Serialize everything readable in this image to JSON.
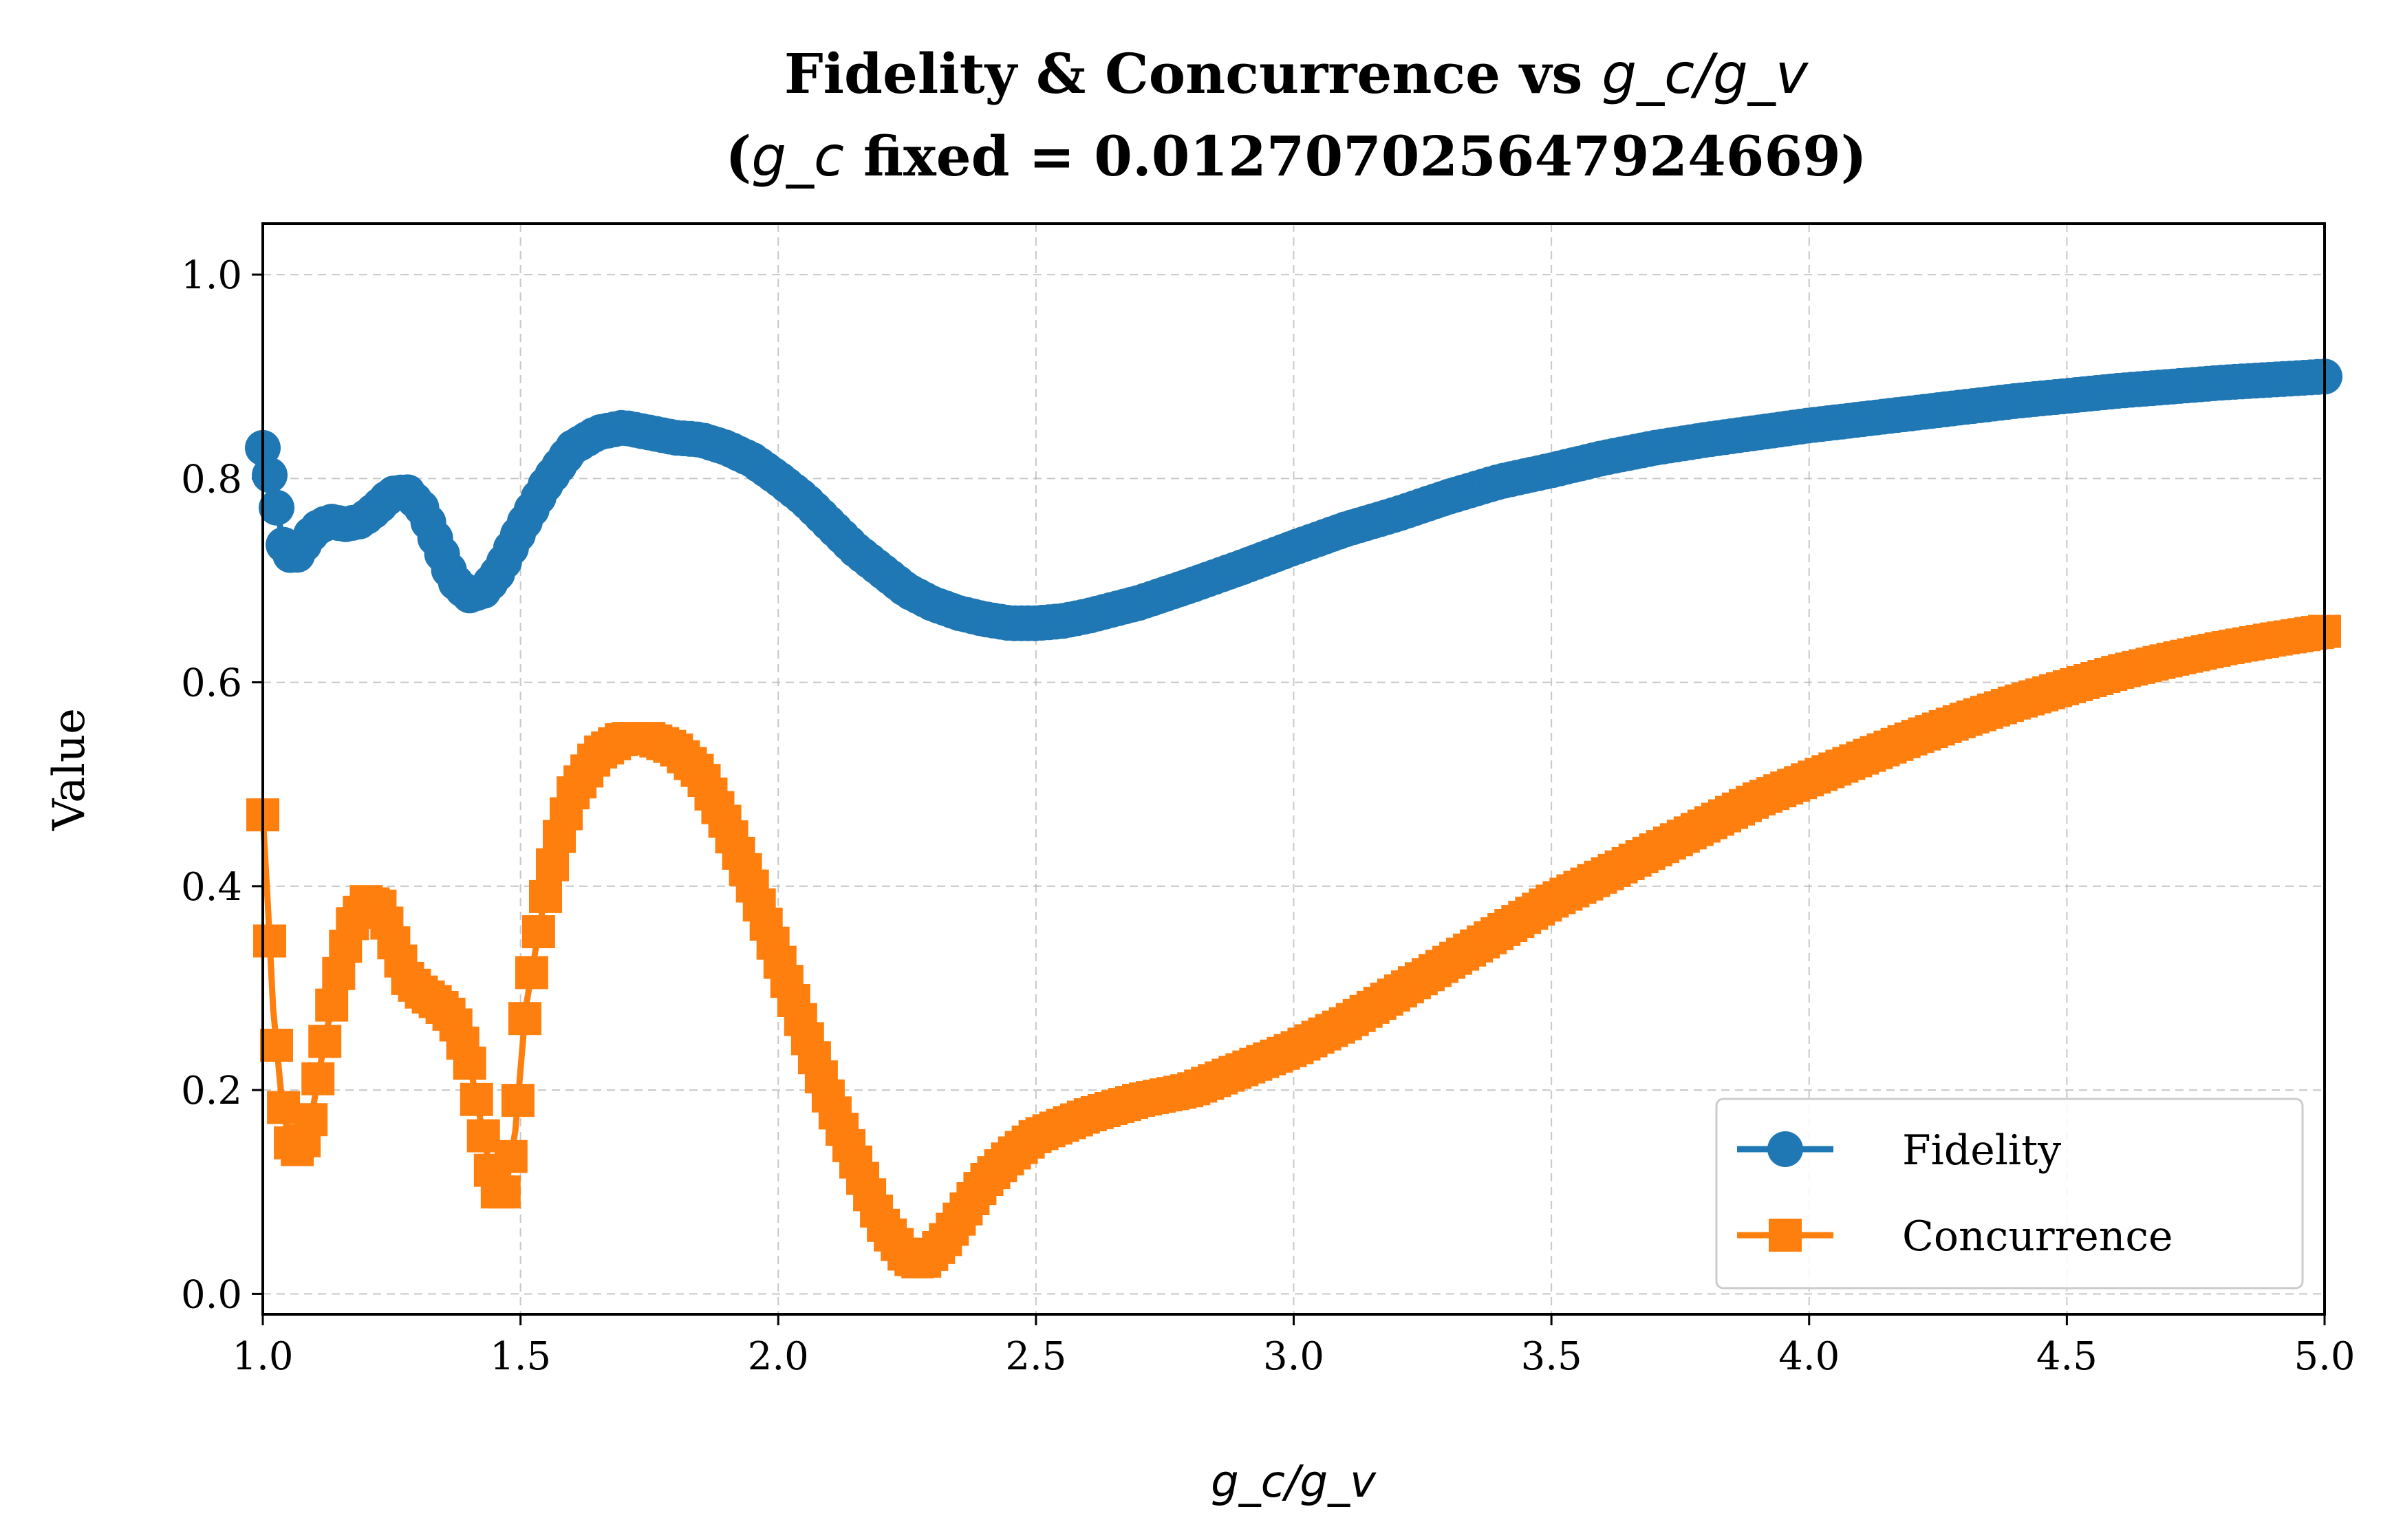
{
  "chart_data": {
    "type": "line",
    "title_line1_prefix": "Fidelity & Concurrence vs ",
    "title_line1_math": "g_c/g_v",
    "title_line2_open": "(",
    "title_line2_math": "g_c",
    "title_line2_rest": " fixed = 0.012707025647924669)",
    "xlabel": "g_c/g_v",
    "ylabel": "Value",
    "xlim": [
      1.0,
      5.0
    ],
    "ylim": [
      -0.02,
      1.05
    ],
    "x_ticks": [
      "1.0",
      "1.5",
      "2.0",
      "2.5",
      "3.0",
      "3.5",
      "4.0",
      "4.5",
      "5.0"
    ],
    "y_ticks": [
      "0.0",
      "0.2",
      "0.4",
      "0.6",
      "0.8",
      "1.0"
    ],
    "grid": true,
    "legend_position": "bottom-right",
    "series": [
      {
        "name": "Fidelity",
        "color": "#1f77b4",
        "marker": "circle",
        "points": [
          [
            1.0,
            0.83
          ],
          [
            1.02,
            0.79
          ],
          [
            1.04,
            0.735
          ],
          [
            1.06,
            0.72
          ],
          [
            1.08,
            0.735
          ],
          [
            1.1,
            0.75
          ],
          [
            1.13,
            0.758
          ],
          [
            1.16,
            0.755
          ],
          [
            1.19,
            0.758
          ],
          [
            1.22,
            0.77
          ],
          [
            1.25,
            0.785
          ],
          [
            1.28,
            0.787
          ],
          [
            1.31,
            0.77
          ],
          [
            1.34,
            0.735
          ],
          [
            1.37,
            0.7
          ],
          [
            1.4,
            0.685
          ],
          [
            1.43,
            0.69
          ],
          [
            1.46,
            0.71
          ],
          [
            1.5,
            0.75
          ],
          [
            1.55,
            0.795
          ],
          [
            1.6,
            0.83
          ],
          [
            1.65,
            0.845
          ],
          [
            1.7,
            0.85
          ],
          [
            1.75,
            0.845
          ],
          [
            1.8,
            0.84
          ],
          [
            1.85,
            0.838
          ],
          [
            1.9,
            0.83
          ],
          [
            1.95,
            0.818
          ],
          [
            2.0,
            0.8
          ],
          [
            2.05,
            0.78
          ],
          [
            2.1,
            0.755
          ],
          [
            2.15,
            0.73
          ],
          [
            2.2,
            0.71
          ],
          [
            2.25,
            0.69
          ],
          [
            2.3,
            0.677
          ],
          [
            2.35,
            0.668
          ],
          [
            2.4,
            0.662
          ],
          [
            2.45,
            0.658
          ],
          [
            2.5,
            0.658
          ],
          [
            2.55,
            0.66
          ],
          [
            2.6,
            0.665
          ],
          [
            2.7,
            0.678
          ],
          [
            2.8,
            0.695
          ],
          [
            2.9,
            0.713
          ],
          [
            3.0,
            0.732
          ],
          [
            3.1,
            0.75
          ],
          [
            3.2,
            0.765
          ],
          [
            3.3,
            0.782
          ],
          [
            3.4,
            0.797
          ],
          [
            3.5,
            0.808
          ],
          [
            3.6,
            0.82
          ],
          [
            3.7,
            0.83
          ],
          [
            3.8,
            0.838
          ],
          [
            3.9,
            0.845
          ],
          [
            4.0,
            0.852
          ],
          [
            4.1,
            0.858
          ],
          [
            4.2,
            0.864
          ],
          [
            4.3,
            0.87
          ],
          [
            4.4,
            0.876
          ],
          [
            4.5,
            0.881
          ],
          [
            4.6,
            0.886
          ],
          [
            4.7,
            0.89
          ],
          [
            4.8,
            0.894
          ],
          [
            4.9,
            0.897
          ],
          [
            5.0,
            0.9
          ]
        ]
      },
      {
        "name": "Concurrence",
        "color": "#ff7f0e",
        "marker": "square",
        "points": [
          [
            1.0,
            0.47
          ],
          [
            1.01,
            0.38
          ],
          [
            1.02,
            0.28
          ],
          [
            1.035,
            0.2
          ],
          [
            1.05,
            0.15
          ],
          [
            1.07,
            0.14
          ],
          [
            1.09,
            0.16
          ],
          [
            1.11,
            0.22
          ],
          [
            1.14,
            0.3
          ],
          [
            1.17,
            0.36
          ],
          [
            1.2,
            0.385
          ],
          [
            1.23,
            0.38
          ],
          [
            1.25,
            0.35
          ],
          [
            1.28,
            0.31
          ],
          [
            1.31,
            0.295
          ],
          [
            1.34,
            0.285
          ],
          [
            1.37,
            0.27
          ],
          [
            1.4,
            0.23
          ],
          [
            1.43,
            0.15
          ],
          [
            1.45,
            0.1
          ],
          [
            1.47,
            0.1
          ],
          [
            1.49,
            0.16
          ],
          [
            1.51,
            0.28
          ],
          [
            1.54,
            0.37
          ],
          [
            1.57,
            0.44
          ],
          [
            1.6,
            0.49
          ],
          [
            1.65,
            0.53
          ],
          [
            1.7,
            0.545
          ],
          [
            1.75,
            0.545
          ],
          [
            1.8,
            0.535
          ],
          [
            1.85,
            0.51
          ],
          [
            1.9,
            0.46
          ],
          [
            1.95,
            0.4
          ],
          [
            2.0,
            0.33
          ],
          [
            2.05,
            0.26
          ],
          [
            2.1,
            0.19
          ],
          [
            2.15,
            0.13
          ],
          [
            2.2,
            0.07
          ],
          [
            2.25,
            0.035
          ],
          [
            2.28,
            0.03
          ],
          [
            2.32,
            0.05
          ],
          [
            2.36,
            0.08
          ],
          [
            2.4,
            0.11
          ],
          [
            2.45,
            0.135
          ],
          [
            2.5,
            0.155
          ],
          [
            2.6,
            0.175
          ],
          [
            2.7,
            0.19
          ],
          [
            2.8,
            0.2
          ],
          [
            2.9,
            0.22
          ],
          [
            3.0,
            0.24
          ],
          [
            3.1,
            0.265
          ],
          [
            3.2,
            0.295
          ],
          [
            3.3,
            0.325
          ],
          [
            3.4,
            0.355
          ],
          [
            3.5,
            0.385
          ],
          [
            3.6,
            0.41
          ],
          [
            3.7,
            0.435
          ],
          [
            3.8,
            0.46
          ],
          [
            3.9,
            0.485
          ],
          [
            4.0,
            0.505
          ],
          [
            4.1,
            0.525
          ],
          [
            4.2,
            0.545
          ],
          [
            4.3,
            0.563
          ],
          [
            4.4,
            0.58
          ],
          [
            4.5,
            0.595
          ],
          [
            4.6,
            0.61
          ],
          [
            4.7,
            0.622
          ],
          [
            4.8,
            0.633
          ],
          [
            4.9,
            0.642
          ],
          [
            5.0,
            0.65
          ]
        ]
      }
    ]
  }
}
